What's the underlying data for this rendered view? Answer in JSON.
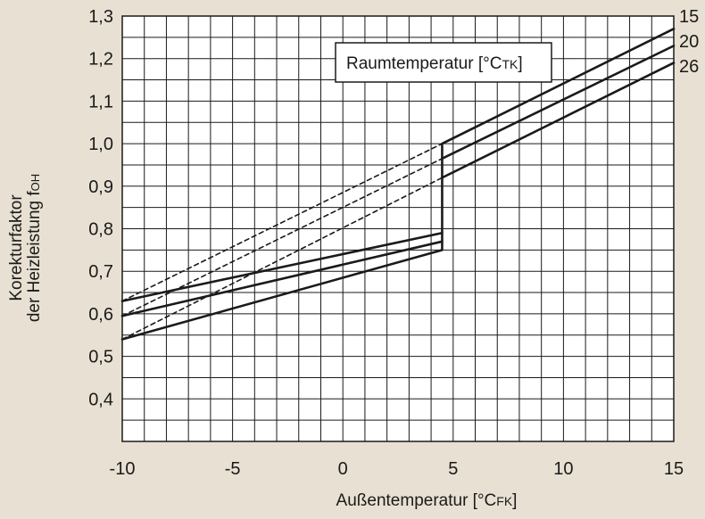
{
  "chart_data": {
    "type": "line",
    "xlabel": "Außentemperatur [°C",
    "xlabel_sub": "FK",
    "xlabel_end": "]",
    "ylabel_line1": "Korekturfaktor",
    "ylabel_line2": "der Heizleistung f",
    "ylabel_sub": "OH",
    "legend_title": "Raumtemperatur [°C",
    "legend_sub": "TK",
    "legend_end": "]",
    "xlim": [
      -10,
      15
    ],
    "ylim": [
      0.3,
      1.3
    ],
    "x_ticks": [
      "-10",
      "-5",
      "0",
      "5",
      "10",
      "15"
    ],
    "x_tick_values": [
      -10,
      -5,
      0,
      5,
      10,
      15
    ],
    "y_ticks": [
      "0,4",
      "0,5",
      "0,6",
      "0,7",
      "0,8",
      "0,9",
      "1,0",
      "1,1",
      "1,2",
      "1,3"
    ],
    "y_tick_values": [
      0.4,
      0.5,
      0.6,
      0.7,
      0.8,
      0.9,
      1.0,
      1.1,
      1.2,
      1.3
    ],
    "grid": true,
    "x_minor_step": 1,
    "y_minor_step": 0.05,
    "step_x": 4.5,
    "series": [
      {
        "name": "15",
        "solid_low": [
          [
            -10,
            0.63
          ],
          [
            4.5,
            0.79
          ]
        ],
        "dashed": [
          [
            -10,
            0.63
          ],
          [
            4.5,
            1.0
          ]
        ],
        "solid_high": [
          [
            4.5,
            1.0
          ],
          [
            15,
            1.27
          ]
        ]
      },
      {
        "name": "20",
        "solid_low": [
          [
            -10,
            0.595
          ],
          [
            4.5,
            0.77
          ]
        ],
        "dashed": [
          [
            -10,
            0.595
          ],
          [
            4.5,
            0.965
          ]
        ],
        "solid_high": [
          [
            4.5,
            0.965
          ],
          [
            15,
            1.23
          ]
        ]
      },
      {
        "name": "26",
        "solid_low": [
          [
            -10,
            0.54
          ],
          [
            4.5,
            0.75
          ]
        ],
        "dashed": [
          [
            -10,
            0.54
          ],
          [
            4.5,
            0.92
          ]
        ],
        "solid_high": [
          [
            4.5,
            0.92
          ],
          [
            15,
            1.19
          ]
        ]
      }
    ],
    "colors": {
      "background": "#e8e1d3",
      "plot": "#ffffff",
      "ink": "#1a1a1a"
    }
  }
}
